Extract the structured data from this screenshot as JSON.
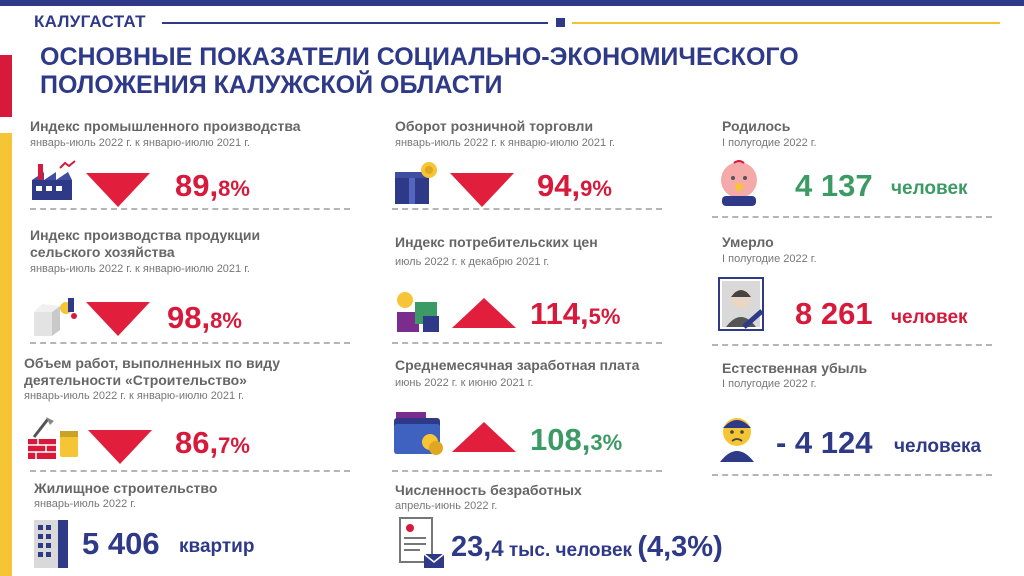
{
  "header": {
    "agency": "КАЛУГАСТАТ",
    "title_line1": "ОСНОВНЫЕ ПОКАЗАТЕЛИ СОЦИАЛЬНО-ЭКОНОМИЧЕСКОГО",
    "title_line2": "ПОЛОЖЕНИЯ КАЛУЖСКОЙ ОБЛАСТИ"
  },
  "colors": {
    "blue": "#2e3a87",
    "red": "#d71a3b",
    "green": "#3c9a64",
    "yellow": "#f6c536"
  },
  "col1": {
    "industry": {
      "label": "Индекс промышленного производства",
      "period": "январь-июль 2022 г. к январю-июлю 2021 г.",
      "value_main": "89,",
      "value_frac": "8%",
      "trend": "down",
      "icon": "factory-icon"
    },
    "agriculture": {
      "label_line1": "Индекс производства продукции",
      "label_line2": "сельского хозяйства",
      "period": "январь-июль 2022 г. к январю-июлю 2021 г.",
      "value_main": "98,",
      "value_frac": "8%",
      "trend": "down",
      "icon": "milk-carton-icon"
    },
    "construction": {
      "label_line1": "Объем работ, выполненных по виду",
      "label_line2": "деятельности «Строительство»",
      "period": "январь-июль 2022 г. к январю-июлю 2021 г.",
      "value_main": "86,",
      "value_frac": "7%",
      "trend": "down",
      "icon": "brick-wall-icon"
    },
    "housing": {
      "label": "Жилищное строительство",
      "period": "январь-июль 2022 г.",
      "value": "5 406",
      "unit": "квартир",
      "icon": "apartment-building-icon"
    }
  },
  "col2": {
    "retail": {
      "label": "Оборот розничной торговли",
      "period": "январь-июль 2022 г. к январю-июлю 2021 г.",
      "value_main": "94,",
      "value_frac": "9%",
      "trend": "down",
      "icon": "gift-box-icon"
    },
    "cpi": {
      "label": "Индекс потребительских цен",
      "period": "июль 2022 г. к декабрю 2021 г.",
      "value_main": "114,",
      "value_frac": "5%",
      "trend": "up",
      "icon": "goods-icon"
    },
    "salary": {
      "label": "Среднемесячная заработная плата",
      "period": "июнь 2022 г. к июню 2021 г.",
      "value_main": "108,",
      "value_frac": "3%",
      "trend": "up",
      "icon": "wallet-icon"
    },
    "unemployed": {
      "label": "Численность безработных",
      "period": "апрель-июнь 2022 г.",
      "value_main": "23,",
      "value_frac": "4",
      "value_unit": " тыс. человек ",
      "value_pct": "(4,3%)",
      "icon": "resume-icon"
    }
  },
  "col3": {
    "born": {
      "label": "Родилось",
      "period": "I полугодие 2022 г.",
      "value": "4 137",
      "unit": "человек",
      "icon": "baby-icon"
    },
    "died": {
      "label": "Умерло",
      "period": "I полугодие 2022 г.",
      "value": "8 261",
      "unit": "человек",
      "icon": "mourning-portrait-icon"
    },
    "natural_decline": {
      "label": "Естественная убыль",
      "period": "I полугодие 2022 г.",
      "value": "- 4 124",
      "unit": "человека",
      "icon": "sad-person-icon"
    }
  }
}
